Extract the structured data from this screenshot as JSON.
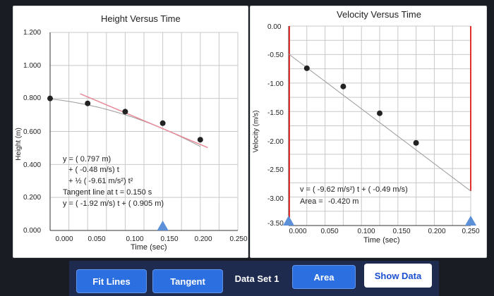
{
  "left_chart": {
    "title": "Height Versus Time",
    "ylabel": "Height (m)",
    "xlabel": "Time (sec)",
    "y_ticks": [
      "1.200",
      "1.000",
      "0.800",
      "0.600",
      "0.400",
      "0.200",
      "0.000"
    ],
    "x_ticks": [
      "0.000",
      "0.050",
      "0.100",
      "0.150",
      "0.200",
      "0.250"
    ],
    "equation": {
      "line1": "y = (  0.797 m)",
      "line2": "+ ( -0.48 m/s) t",
      "line3": "+ ½ (  -9.61 m/s²) t²",
      "line4": "Tangent line at t =  0.150 s",
      "line5": "y = (  -1.92 m/s) t + ( 0.905 m)"
    }
  },
  "right_chart": {
    "title": "Velocity Versus Time",
    "ylabel": "Velocity (m/s)",
    "xlabel": "Time (sec)",
    "y_ticks": [
      "0.00",
      "-0.50",
      "-1.00",
      "-1.50",
      "-2.00",
      "-2.50",
      "-3.00",
      "-3.50"
    ],
    "x_ticks": [
      "0.000",
      "0.050",
      "0.100",
      "0.150",
      "0.200",
      "0.250"
    ],
    "equation": {
      "line1": "v = (   -9.62 m/s²) t + (  -0.49 m/s)",
      "line2_label": "Area =",
      "line2_value": "-0.420 m"
    }
  },
  "chart_data": [
    {
      "type": "scatter",
      "title": "Height Versus Time",
      "xlabel": "Time (sec)",
      "ylabel": "Height (m)",
      "xlim": [
        0,
        0.25
      ],
      "ylim": [
        0,
        1.2
      ],
      "series": [
        {
          "x": [
            0.0,
            0.05,
            0.1,
            0.15,
            0.2
          ],
          "y": [
            0.8,
            0.77,
            0.72,
            0.65,
            0.55
          ]
        }
      ],
      "fit_curve": {
        "a": 0.797,
        "b": -0.48,
        "c": -9.61
      },
      "tangent": {
        "slope": -1.92,
        "intercept": 0.905,
        "at": 0.15
      },
      "grid": true
    },
    {
      "type": "scatter",
      "title": "Velocity Versus Time",
      "xlabel": "Time (sec)",
      "ylabel": "Velocity (m/s)",
      "xlim": [
        0,
        0.25
      ],
      "ylim": [
        -3.5,
        0
      ],
      "series": [
        {
          "x": [
            0.025,
            0.075,
            0.125,
            0.175
          ],
          "y": [
            -0.74,
            -1.06,
            -1.53,
            -2.05
          ]
        }
      ],
      "fit_line": {
        "slope": -9.62,
        "intercept": -0.49
      },
      "area_bound": 0.25,
      "grid": true
    }
  ],
  "buttons": {
    "fit_lines": "Fit Lines",
    "tangent": "Tangent",
    "data_set": "Data Set 1",
    "area": "Area",
    "show_data": "Show Data"
  },
  "colors": {
    "accent_button": "#2c6fe0",
    "fit_curve": "#9a9a9a",
    "tangent_line": "#e88a9a",
    "area_bound": "#e03030",
    "marker": "#5b8fd8",
    "grid": "#c9c9c9",
    "point": "#222222"
  }
}
